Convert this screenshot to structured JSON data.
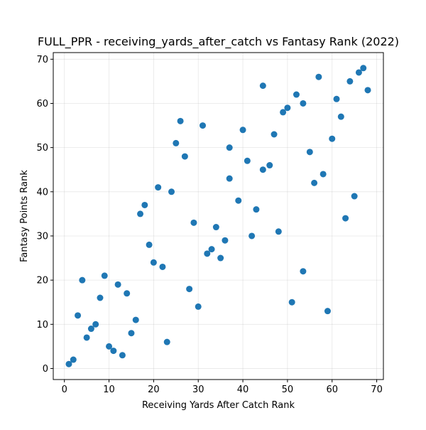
{
  "chart_data": {
    "type": "scatter",
    "title": "FULL_PPR - receiving_yards_after_catch vs Fantasy Rank (2022)",
    "xlabel": "Receiving Yards After Catch Rank",
    "ylabel": "Fantasy Points Rank",
    "xlim": [
      -2.5,
      71.5
    ],
    "ylim": [
      -2.5,
      71.5
    ],
    "xticks": [
      0,
      10,
      20,
      30,
      40,
      50,
      60,
      70
    ],
    "yticks": [
      0,
      10,
      20,
      30,
      40,
      50,
      60,
      70
    ],
    "grid": true,
    "marker_color": "#1f77b4",
    "points": [
      [
        1,
        1
      ],
      [
        2,
        2
      ],
      [
        3,
        12
      ],
      [
        4,
        20
      ],
      [
        5,
        7
      ],
      [
        6,
        9
      ],
      [
        7,
        10
      ],
      [
        8,
        16
      ],
      [
        9,
        21
      ],
      [
        10,
        5
      ],
      [
        11,
        4
      ],
      [
        12,
        19
      ],
      [
        13,
        3
      ],
      [
        14,
        17
      ],
      [
        15,
        8
      ],
      [
        16,
        11
      ],
      [
        17,
        35
      ],
      [
        18,
        37
      ],
      [
        19,
        28
      ],
      [
        20,
        24
      ],
      [
        21,
        41
      ],
      [
        22,
        23
      ],
      [
        23,
        6
      ],
      [
        24,
        40
      ],
      [
        25,
        51
      ],
      [
        26,
        56
      ],
      [
        27,
        48
      ],
      [
        28,
        18
      ],
      [
        29,
        33
      ],
      [
        30,
        14
      ],
      [
        31,
        55
      ],
      [
        32,
        26
      ],
      [
        33,
        27
      ],
      [
        34,
        32
      ],
      [
        35,
        25
      ],
      [
        36,
        29
      ],
      [
        37,
        50
      ],
      [
        37,
        43
      ],
      [
        39,
        38
      ],
      [
        40,
        54
      ],
      [
        41,
        47
      ],
      [
        42,
        30
      ],
      [
        43,
        36
      ],
      [
        44.5,
        64
      ],
      [
        44.5,
        45
      ],
      [
        46,
        46
      ],
      [
        47,
        53
      ],
      [
        48,
        31
      ],
      [
        49,
        58
      ],
      [
        50,
        59
      ],
      [
        51,
        15
      ],
      [
        52,
        62
      ],
      [
        53.5,
        60
      ],
      [
        53.5,
        22
      ],
      [
        55,
        49
      ],
      [
        56,
        42
      ],
      [
        57,
        66
      ],
      [
        58,
        44
      ],
      [
        59,
        13
      ],
      [
        60,
        52
      ],
      [
        61,
        61
      ],
      [
        62,
        57
      ],
      [
        63,
        34
      ],
      [
        64,
        65
      ],
      [
        65,
        39
      ],
      [
        66,
        67
      ],
      [
        67,
        68
      ],
      [
        68,
        63
      ]
    ]
  }
}
